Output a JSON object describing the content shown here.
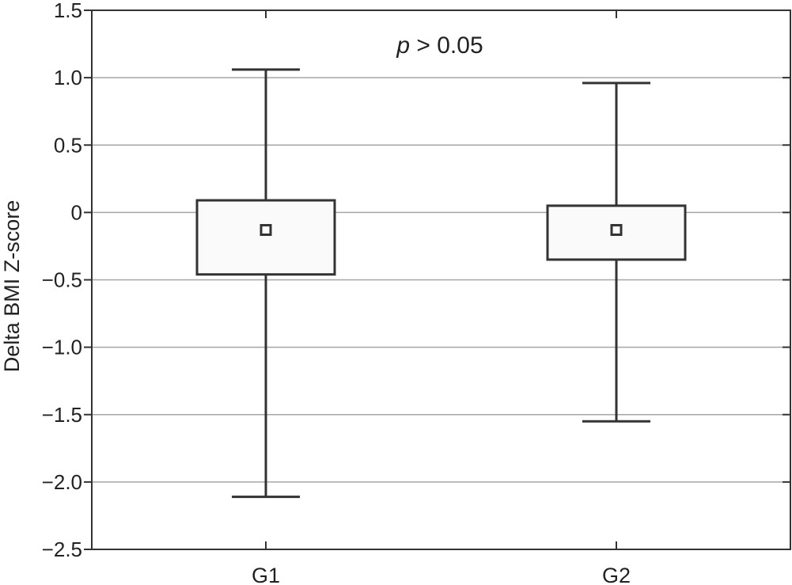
{
  "chart_data": {
    "type": "box",
    "ylabel": "Delta BMI Z-score",
    "xlabel": "",
    "ylim": [
      -2.5,
      1.5
    ],
    "yticks": [
      1.5,
      1.0,
      0.5,
      0,
      -0.5,
      -1.0,
      -1.5,
      -2.0,
      -2.5
    ],
    "ytick_labels": [
      "1.5",
      "1.0",
      "0.5",
      "0",
      "−0.5",
      "−1.0",
      "−1.5",
      "−2.0",
      "−2.5"
    ],
    "grid": true,
    "categories": [
      "G1",
      "G2"
    ],
    "boxes": [
      {
        "category": "G1",
        "whisker_high": 1.06,
        "q3": 0.09,
        "center": -0.13,
        "q1": -0.46,
        "whisker_low": -2.11
      },
      {
        "category": "G2",
        "whisker_high": 0.96,
        "q3": 0.05,
        "center": -0.13,
        "q1": -0.35,
        "whisker_low": -1.55
      }
    ],
    "annotation": {
      "italic": "p",
      "rest": " > 0.05"
    }
  },
  "colors": {
    "axis": "#333333",
    "grid": "#a6a6a6",
    "box_fill": "#fafafa",
    "box_stroke": "#333333"
  }
}
